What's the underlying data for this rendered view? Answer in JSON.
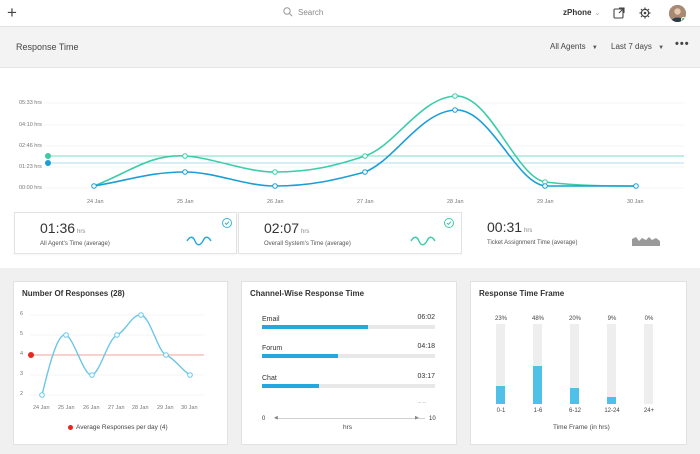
{
  "topbar": {
    "plus_icon": "plus-icon",
    "search_placeholder": "Search",
    "phone_label": "zPhone",
    "colors": {
      "accent": "#26a8df",
      "status_online": "#3cc35a"
    }
  },
  "section": {
    "title": "Response Time",
    "agents_filter": "All Agents",
    "days_filter": "Last 7 days",
    "more": "•••"
  },
  "main_chart": {
    "y_ticks": [
      "05:33 hrs",
      "04:10 hrs",
      "02:46 hrs",
      "01:23 hrs",
      "00:00 hrs"
    ],
    "x_ticks": [
      "24 Jan",
      "25 Jan",
      "26 Jan",
      "27 Jan",
      "28 Jan",
      "29 Jan",
      "30 Jan"
    ]
  },
  "stats": [
    {
      "value": "01:36",
      "unit": "hrs",
      "label": "All Agent's Time (average)"
    },
    {
      "value": "02:07",
      "unit": "hrs",
      "label": "Overall System's Time (average)"
    },
    {
      "value": "00:31",
      "unit": "hrs",
      "label": "Ticket Assignment Time (average)"
    }
  ],
  "responses_card": {
    "title": "Number Of Responses (28)",
    "y_ticks": [
      "6",
      "5",
      "4",
      "3",
      "2"
    ],
    "x_ticks": [
      "24 Jan",
      "25 Jan",
      "26 Jan",
      "27 Jan",
      "28 Jan",
      "29 Jan",
      "30 Jan"
    ],
    "legend": "Average Responses per day (4)"
  },
  "channel_card": {
    "title": "Channel-Wise Response Time",
    "rows": [
      {
        "name": "Email",
        "time": "06:02",
        "fraction": 0.61
      },
      {
        "name": "Forum",
        "time": "04:18",
        "fraction": 0.44
      },
      {
        "name": "Chat",
        "time": "03:17",
        "fraction": 0.33
      }
    ],
    "scroll_partial": "-- --",
    "axis_min": "0",
    "axis_max": "10",
    "axis_label": "hrs"
  },
  "timeframe_card": {
    "title": "Response Time Frame",
    "bars": [
      {
        "pct": "23%",
        "cat": "0-1",
        "fraction": 0.23
      },
      {
        "pct": "48%",
        "cat": "1-6",
        "fraction": 0.48
      },
      {
        "pct": "20%",
        "cat": "6-12",
        "fraction": 0.2
      },
      {
        "pct": "9%",
        "cat": "12-24",
        "fraction": 0.09
      },
      {
        "pct": "0%",
        "cat": "24+",
        "fraction": 0.0
      }
    ],
    "axis_label": "Time Frame (in hrs)"
  }
}
